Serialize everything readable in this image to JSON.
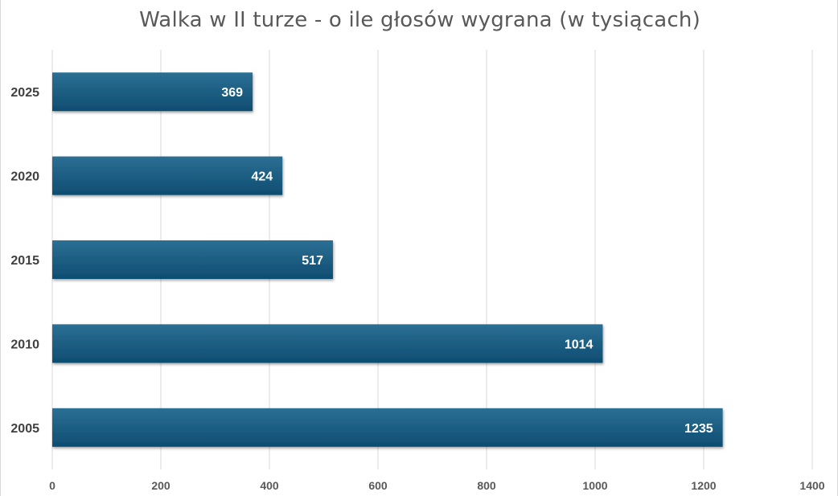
{
  "chart_data": {
    "type": "bar",
    "orientation": "horizontal",
    "title": "Walka w II turze - o ile głosów wygrana (w tysiącach)",
    "categories": [
      "2025",
      "2020",
      "2015",
      "2010",
      "2005"
    ],
    "values": [
      369,
      424,
      517,
      1014,
      1235
    ],
    "xlim": [
      0,
      1400
    ],
    "x_ticks": [
      0,
      200,
      400,
      600,
      800,
      1000,
      1200,
      1400
    ],
    "grid": true,
    "legend": "none",
    "data_labels": true,
    "colors": {
      "bar_top": "#2c6f94",
      "bar_bottom": "#0e4d71",
      "gridline": "#d9d9d9"
    }
  }
}
